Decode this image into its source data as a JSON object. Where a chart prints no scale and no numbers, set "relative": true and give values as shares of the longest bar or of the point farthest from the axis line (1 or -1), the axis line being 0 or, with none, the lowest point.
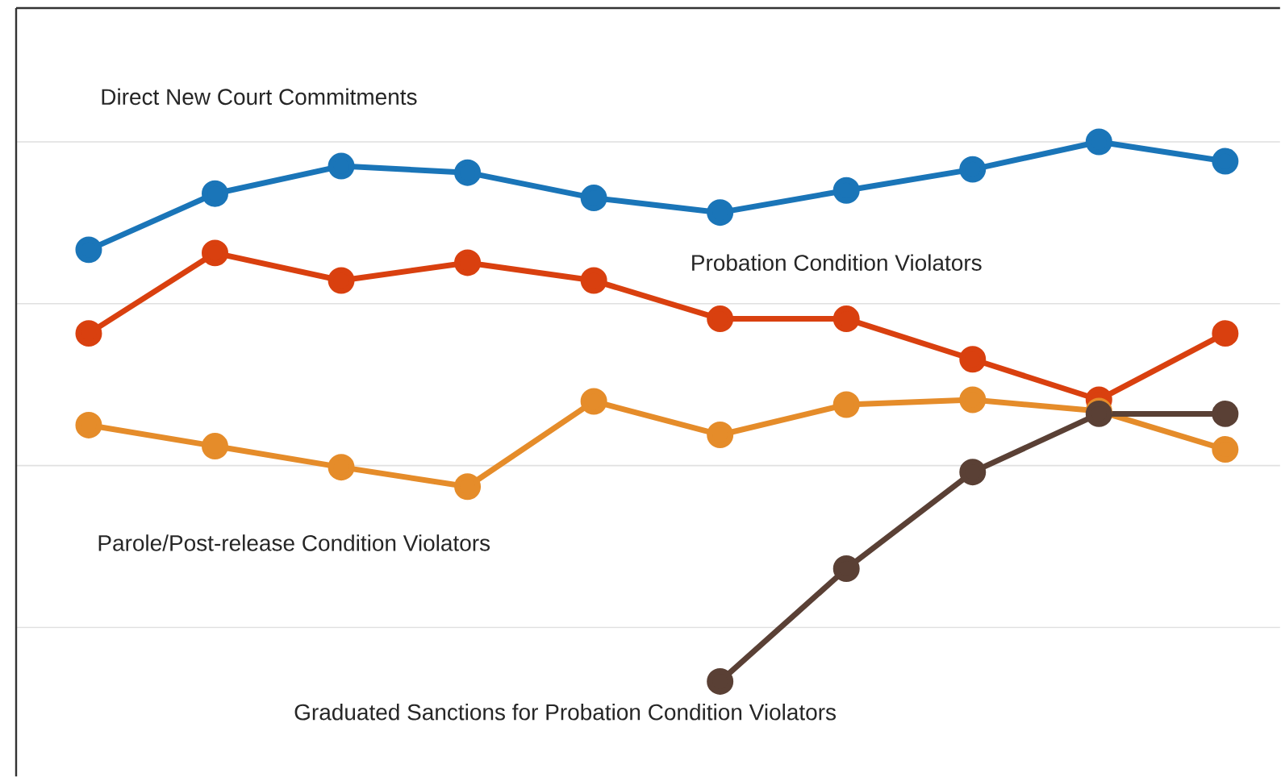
{
  "chart_data": {
    "type": "line",
    "relative": true,
    "grid": "y",
    "marker": "circle",
    "categories": [
      null,
      null,
      null,
      null,
      null,
      null,
      null,
      null,
      null,
      null
    ],
    "series": [
      {
        "name": "Direct New Court Commitments",
        "color": "#1a75b8",
        "values": [
          0.8,
          0.904,
          0.955,
          0.943,
          0.896,
          0.869,
          0.91,
          0.949,
          1,
          0.964
        ]
      },
      {
        "name": "Probation Condition Violators",
        "color": "#d9400f",
        "values": [
          0.645,
          0.794,
          0.743,
          0.776,
          0.743,
          0.672,
          0.672,
          0.597,
          0.522,
          0.645
        ]
      },
      {
        "name": "Parole/Post-release Condition Violators",
        "color": "#e58c2a",
        "values": [
          0.475,
          0.436,
          0.397,
          0.361,
          0.519,
          0.457,
          0.513,
          0.522,
          0.501,
          0.43
        ]
      },
      {
        "name": "Graduated Sanctions for Probation Condition Violators",
        "color": "#5a4035",
        "values": [
          null,
          null,
          null,
          null,
          null,
          0,
          0.209,
          0.388,
          0.496,
          0.496
        ]
      }
    ]
  }
}
